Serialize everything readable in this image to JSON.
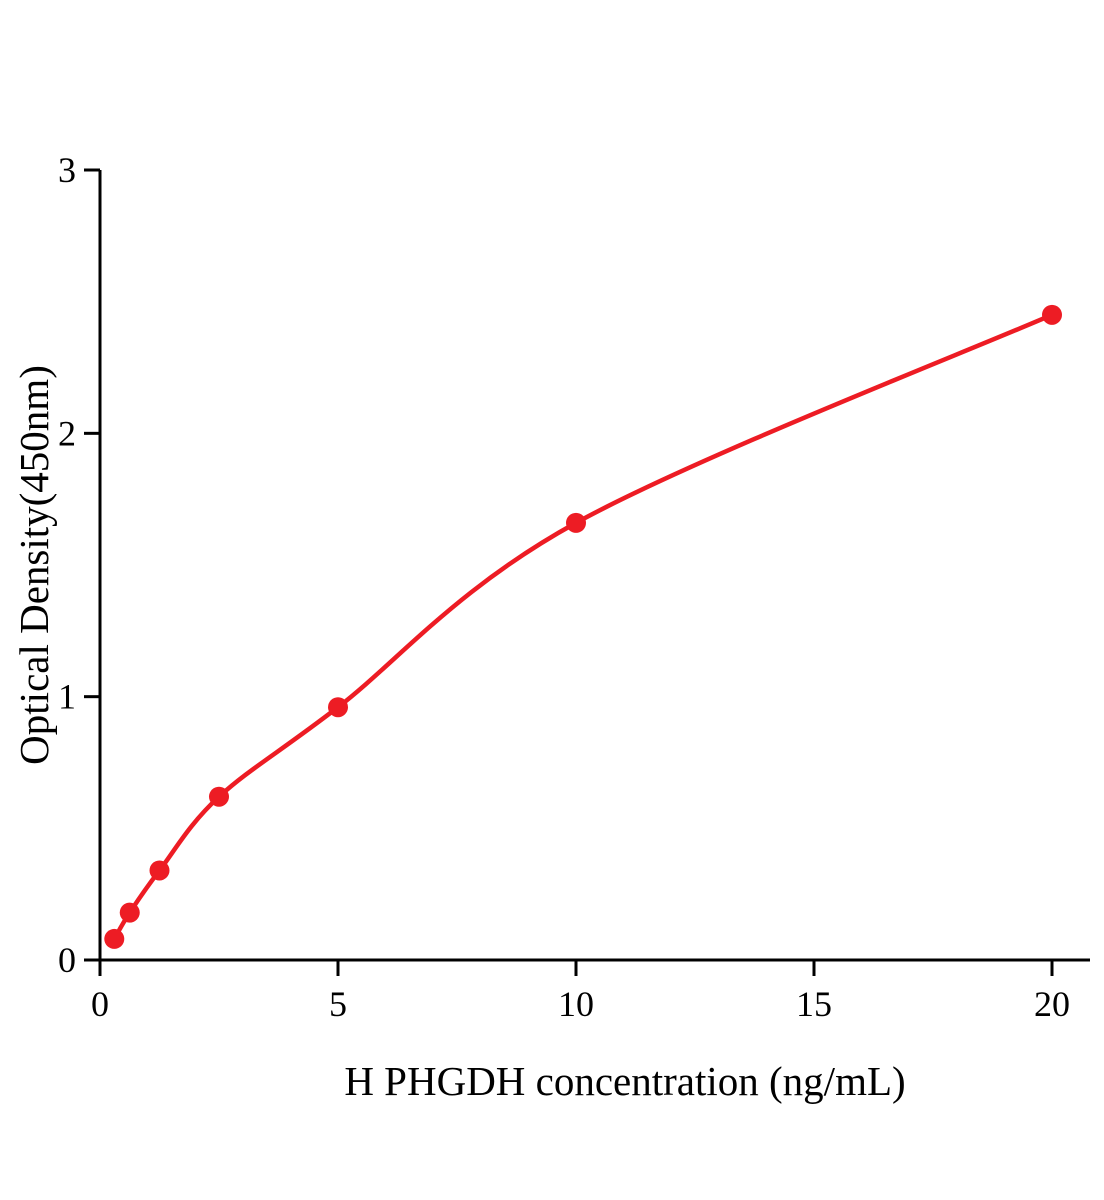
{
  "chart_data": {
    "type": "scatter",
    "title": "",
    "xlabel": "H PHGDH concentration (ng/mL)",
    "ylabel": "Optical Density(450nm)",
    "x": [
      0.3,
      0.625,
      1.25,
      2.5,
      5,
      10,
      20
    ],
    "y": [
      0.08,
      0.18,
      0.34,
      0.62,
      0.96,
      1.66,
      2.45
    ],
    "xlim": [
      0,
      20.8
    ],
    "ylim": [
      0,
      3
    ],
    "x_ticks": [
      0,
      5,
      10,
      15,
      20
    ],
    "y_ticks": [
      0,
      1,
      2,
      3
    ],
    "series_color": "#ed1c24",
    "axis_color": "#000000",
    "marker": "circle",
    "line": "smooth-fit",
    "grid": false,
    "legend": null
  }
}
